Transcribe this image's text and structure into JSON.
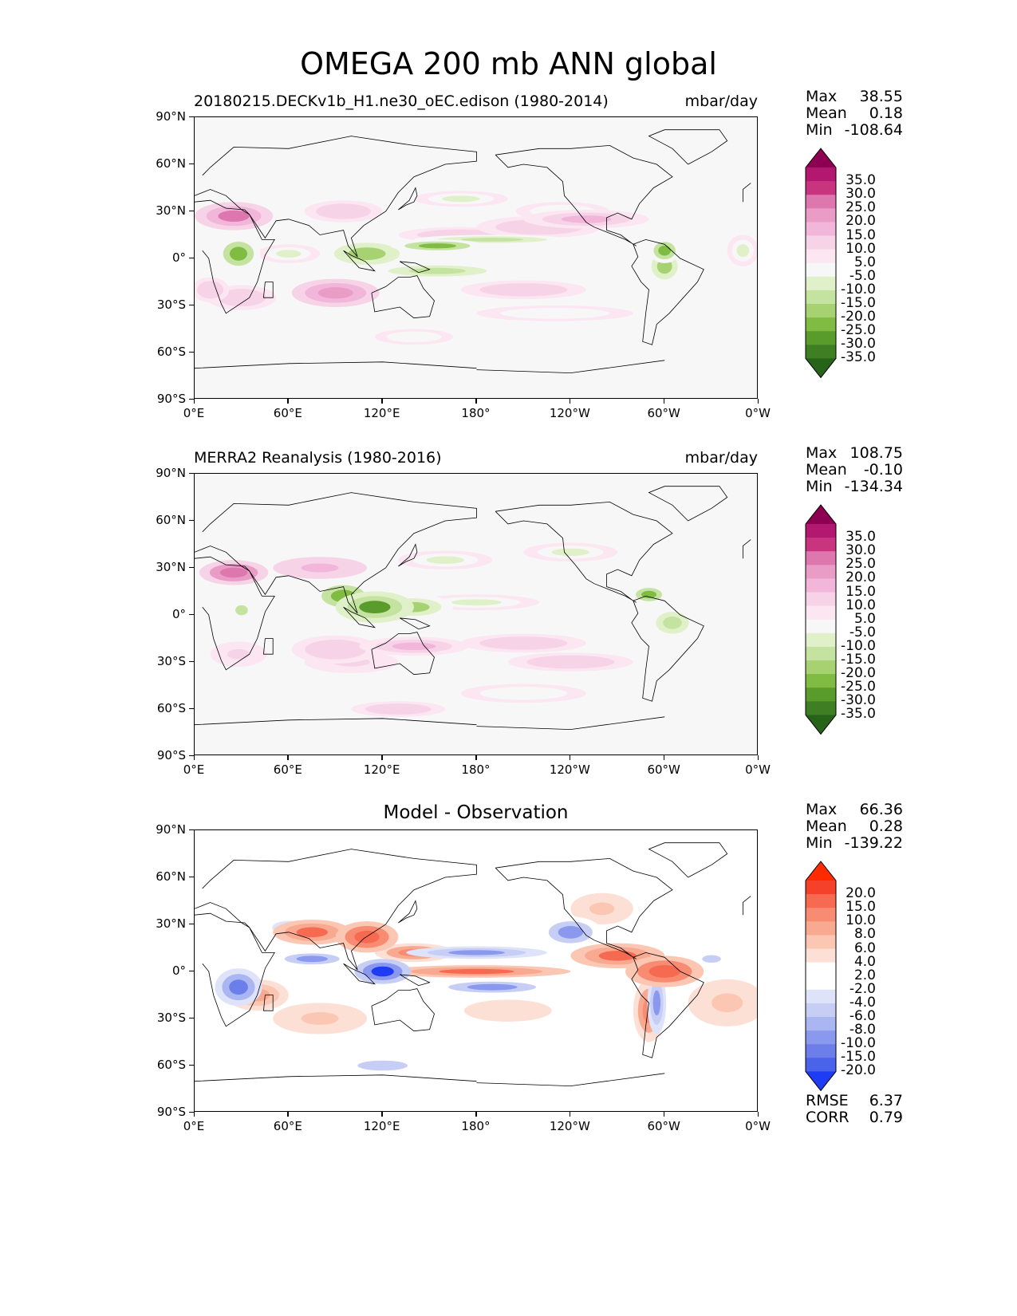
{
  "figure": {
    "title": "OMEGA 200 mb ANN global"
  },
  "axes": {
    "lon_ticks": [
      "0°E",
      "60°E",
      "120°E",
      "180°",
      "120°W",
      "60°W",
      "0°W"
    ],
    "lat_ticks": [
      "90°N",
      "60°N",
      "30°N",
      "0°",
      "30°S",
      "60°S",
      "90°S"
    ]
  },
  "panels": [
    {
      "title_left": "20180215.DECKv1b_H1.ne30_oEC.edison (1980-2014)",
      "title_center": "",
      "units": "mbar/day",
      "stats": {
        "max_label": "Max",
        "max": "38.55",
        "mean_label": "Mean",
        "mean": "0.18",
        "min_label": "Min",
        "min": "-108.64"
      },
      "colorbar": {
        "labels": [
          "35.0",
          "30.0",
          "25.0",
          "20.0",
          "15.0",
          "10.0",
          "5.0",
          "-5.0",
          "-10.0",
          "-15.0",
          "-20.0",
          "-25.0",
          "-30.0",
          "-35.0"
        ],
        "colors": [
          "#8e0152",
          "#b2186f",
          "#c9347e",
          "#de77ae",
          "#e89cc6",
          "#f1b6da",
          "#f7d3e8",
          "#fbe6f1",
          "#f7f7f7",
          "#e0f0c8",
          "#c5e3a0",
          "#a6d272",
          "#7fbc41",
          "#5a9c2c",
          "#3e7f24",
          "#276419"
        ]
      }
    },
    {
      "title_left": "MERRA2 Reanalysis (1980-2016)",
      "title_center": "",
      "units": "mbar/day",
      "stats": {
        "max_label": "Max",
        "max": "108.75",
        "mean_label": "Mean",
        "mean": "-0.10",
        "min_label": "Min",
        "min": "-134.34"
      },
      "colorbar": {
        "labels": [
          "35.0",
          "30.0",
          "25.0",
          "20.0",
          "15.0",
          "10.0",
          "5.0",
          "-5.0",
          "-10.0",
          "-15.0",
          "-20.0",
          "-25.0",
          "-30.0",
          "-35.0"
        ],
        "colors": [
          "#8e0152",
          "#b2186f",
          "#c9347e",
          "#de77ae",
          "#e89cc6",
          "#f1b6da",
          "#f7d3e8",
          "#fbe6f1",
          "#f7f7f7",
          "#e0f0c8",
          "#c5e3a0",
          "#a6d272",
          "#7fbc41",
          "#5a9c2c",
          "#3e7f24",
          "#276419"
        ]
      }
    },
    {
      "title_left": "",
      "title_center": "Model - Observation",
      "units": "",
      "stats": {
        "max_label": "Max",
        "max": "66.36",
        "mean_label": "Mean",
        "mean": "0.28",
        "min_label": "Min",
        "min": "-139.22"
      },
      "colorbar": {
        "labels": [
          "20.0",
          "15.0",
          "10.0",
          "8.0",
          "6.0",
          "4.0",
          "2.0",
          "-2.0",
          "-4.0",
          "-6.0",
          "-8.0",
          "-10.0",
          "-15.0",
          "-20.0"
        ],
        "colors": [
          "#ff2a00",
          "#f5412a",
          "#f56a50",
          "#f78c72",
          "#f9a98f",
          "#fbc6b2",
          "#fde0d5",
          "#ffffff",
          "#ffffff",
          "#dfe3fa",
          "#c6cef5",
          "#a9b6f1",
          "#8a99ee",
          "#6c7eea",
          "#4b62ea",
          "#1f3cf5"
        ]
      },
      "metrics": {
        "rmse_label": "RMSE",
        "rmse": "6.37",
        "corr_label": "CORR",
        "corr": "0.79"
      }
    }
  ]
}
